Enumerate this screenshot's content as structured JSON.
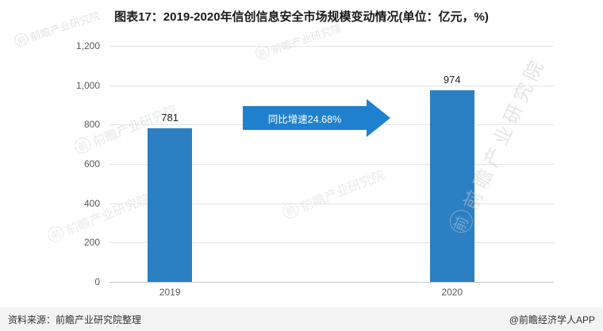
{
  "title": "图表17：2019-2020年信创信息安全市场规模变动情况(单位：亿元，%)",
  "chart_data": {
    "type": "bar",
    "categories": [
      "2019",
      "2020"
    ],
    "values": [
      781,
      974
    ],
    "value_labels": [
      "781",
      "974"
    ],
    "ylim": [
      0,
      1200
    ],
    "yticks": [
      0,
      200,
      400,
      600,
      800,
      1000,
      1200
    ],
    "ytick_labels": [
      "0",
      "200",
      "400",
      "600",
      "800",
      "1,000",
      "1,200"
    ],
    "grid": "horizontal",
    "legend": "none",
    "bar_color": "#2b7fc3",
    "annotation": {
      "text": "同比增速24.68%",
      "shape": "right-arrow",
      "color": "#1f80cd",
      "text_color": "#ffffff"
    }
  },
  "footer": {
    "source": "资料来源：前瞻产业研究院整理",
    "credit": "@前瞻经济学人APP"
  },
  "watermark": {
    "text": "前瞻产业研究院",
    "logo_char": "前"
  }
}
